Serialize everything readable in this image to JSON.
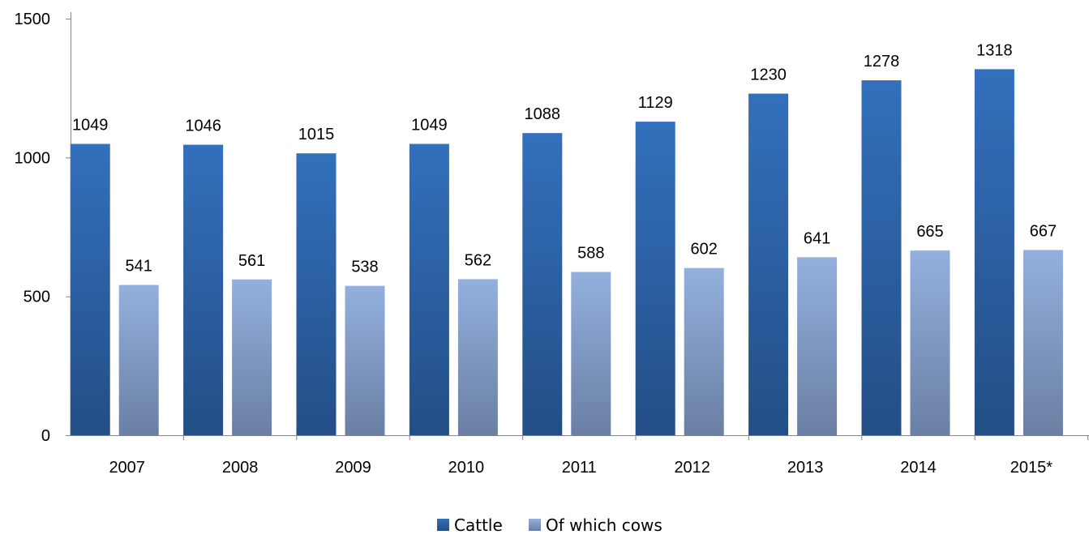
{
  "chart_data": {
    "type": "bar",
    "title": "",
    "xlabel": "",
    "ylabel": "",
    "categories": [
      "2007",
      "2008",
      "2009",
      "2010",
      "2011",
      "2012",
      "2013",
      "2014",
      "2015*"
    ],
    "series": [
      {
        "name": "Cattle",
        "values": [
          1049,
          1046,
          1015,
          1049,
          1088,
          1129,
          1230,
          1278,
          1318
        ],
        "color": "#2F65AE"
      },
      {
        "name": "Of which cows",
        "values": [
          541,
          561,
          538,
          562,
          588,
          602,
          641,
          665,
          667
        ],
        "color": "#8AA8D6"
      }
    ],
    "ylim": [
      0,
      1500
    ],
    "yticks": [
      "0",
      "500",
      "1000",
      "1500"
    ],
    "grid": false,
    "data_labels": true,
    "legend_position": "bottom"
  }
}
